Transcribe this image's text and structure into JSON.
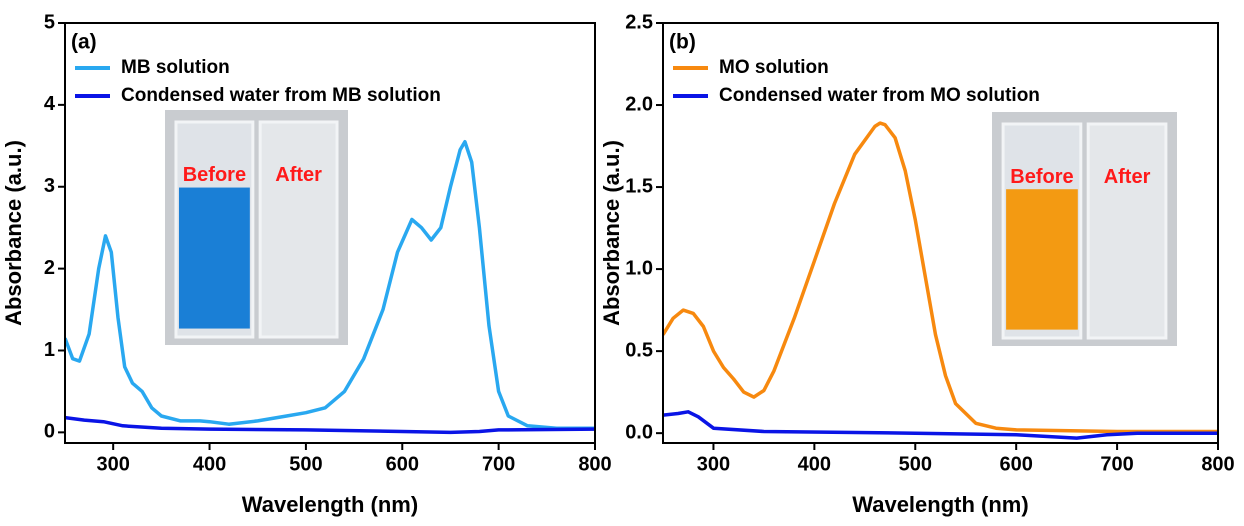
{
  "chart_data": [
    {
      "type": "line",
      "panel_label": "(a)",
      "x_label": "Wavelength (nm)",
      "y_label": "Absorbance (a.u.)",
      "xlim": [
        250,
        800
      ],
      "ylim": [
        -0.13,
        5
      ],
      "xticks": [
        300,
        400,
        500,
        600,
        700,
        800
      ],
      "yticks": [
        0,
        1,
        2,
        3,
        4,
        5
      ],
      "inset_labels": [
        "Before",
        "After"
      ],
      "series": [
        {
          "name": "MB solution",
          "color": "#29a8f0",
          "x": [
            250,
            258,
            265,
            275,
            285,
            292,
            298,
            305,
            312,
            320,
            330,
            340,
            350,
            370,
            390,
            400,
            420,
            450,
            480,
            500,
            520,
            540,
            560,
            580,
            595,
            610,
            620,
            630,
            640,
            650,
            660,
            665,
            672,
            680,
            690,
            700,
            710,
            730,
            760,
            800
          ],
          "values": [
            1.15,
            0.9,
            0.87,
            1.2,
            2.0,
            2.4,
            2.2,
            1.4,
            0.8,
            0.6,
            0.5,
            0.3,
            0.2,
            0.14,
            0.14,
            0.13,
            0.1,
            0.14,
            0.2,
            0.24,
            0.3,
            0.5,
            0.9,
            1.5,
            2.2,
            2.6,
            2.5,
            2.35,
            2.5,
            3.0,
            3.45,
            3.55,
            3.3,
            2.5,
            1.3,
            0.5,
            0.2,
            0.08,
            0.05,
            0.05
          ]
        },
        {
          "name": "Condensed water from MB solution",
          "color": "#0a14e6",
          "x": [
            250,
            270,
            290,
            310,
            350,
            400,
            500,
            600,
            650,
            680,
            700,
            800
          ],
          "values": [
            0.18,
            0.15,
            0.13,
            0.08,
            0.05,
            0.04,
            0.03,
            0.01,
            0.0,
            0.01,
            0.03,
            0.04
          ]
        }
      ]
    },
    {
      "type": "line",
      "panel_label": "(b)",
      "x_label": "Wavelength (nm)",
      "y_label": "Absorbance (a.u.)",
      "xlim": [
        250,
        800
      ],
      "ylim": [
        -0.06,
        2.5
      ],
      "xticks": [
        300,
        400,
        500,
        600,
        700,
        800
      ],
      "yticks": [
        {
          "value": 0,
          "label": "0.0"
        },
        0.5,
        {
          "value": 1,
          "label": "1.0"
        },
        1.5,
        {
          "value": 2,
          "label": "2.0"
        },
        2.5
      ],
      "inset_labels": [
        "Before",
        "After"
      ],
      "series": [
        {
          "name": "MO solution",
          "color": "#f7890f",
          "x": [
            250,
            260,
            270,
            280,
            290,
            300,
            310,
            320,
            330,
            340,
            350,
            360,
            380,
            400,
            420,
            440,
            460,
            465,
            470,
            480,
            490,
            500,
            510,
            520,
            530,
            540,
            560,
            580,
            600,
            700,
            800
          ],
          "values": [
            0.6,
            0.7,
            0.75,
            0.73,
            0.65,
            0.5,
            0.4,
            0.33,
            0.25,
            0.22,
            0.26,
            0.38,
            0.7,
            1.05,
            1.4,
            1.7,
            1.87,
            1.89,
            1.88,
            1.8,
            1.6,
            1.3,
            0.95,
            0.6,
            0.35,
            0.18,
            0.06,
            0.03,
            0.02,
            0.01,
            0.01
          ]
        },
        {
          "name": "Condensed water from MO solution",
          "color": "#0a14e6",
          "x": [
            250,
            265,
            275,
            285,
            300,
            350,
            500,
            600,
            660,
            690,
            720,
            800
          ],
          "values": [
            0.11,
            0.12,
            0.13,
            0.1,
            0.03,
            0.01,
            0.0,
            -0.01,
            -0.03,
            -0.01,
            0.0,
            0.0
          ]
        }
      ]
    }
  ]
}
